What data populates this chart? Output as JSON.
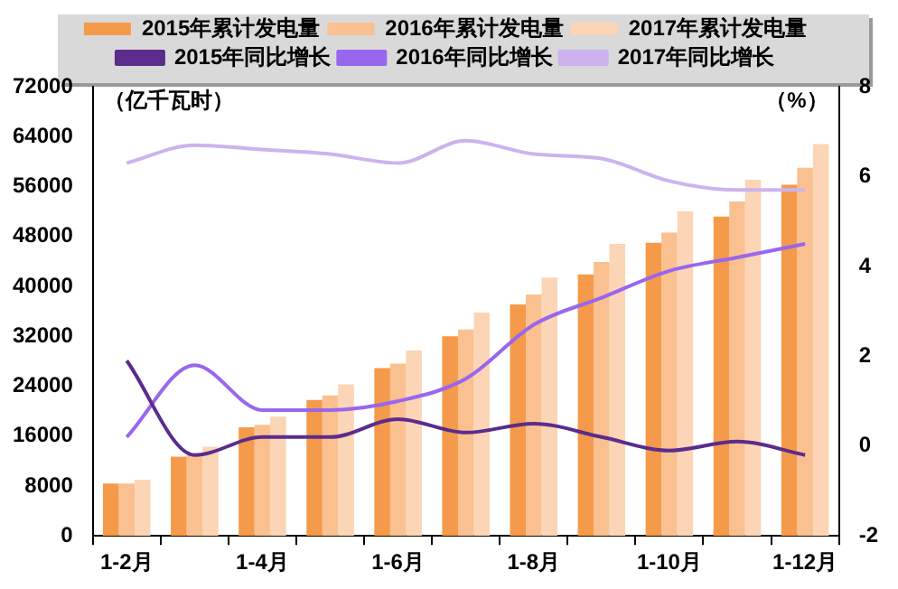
{
  "chart_data": {
    "type": "bar",
    "ylabel": "（亿千瓦时）",
    "y2label": "（%）",
    "categories": [
      "1-2月",
      null,
      "1-4月",
      null,
      "1-6月",
      null,
      "1-8月",
      null,
      "1-10月",
      null,
      "1-12月"
    ],
    "series": [
      {
        "name": "2015年累计发电量",
        "color": "#f59a4a",
        "values": [
          8400,
          12700,
          17400,
          21800,
          26900,
          32000,
          37100,
          41900,
          47000,
          51200,
          56300
        ]
      },
      {
        "name": "2016年累计发电量",
        "color": "#fac090",
        "values": [
          8400,
          12900,
          17800,
          22500,
          27600,
          33100,
          38700,
          43900,
          48600,
          53600,
          59000
        ]
      },
      {
        "name": "2017年累计发电量",
        "color": "#fbd5b5",
        "values": [
          9000,
          14300,
          19100,
          24300,
          29700,
          35800,
          41400,
          46800,
          52000,
          57100,
          62800
        ]
      },
      {
        "name": "2015年同比增长",
        "type": "line",
        "axis": "y2",
        "color": "#5b2c8c",
        "values": [
          1.9,
          -0.2,
          0.2,
          0.2,
          0.6,
          0.3,
          0.5,
          0.2,
          -0.1,
          0.1,
          -0.2
        ]
      },
      {
        "name": "2016年同比增长",
        "type": "line",
        "axis": "y2",
        "color": "#9966ee",
        "values": [
          0.2,
          1.8,
          0.8,
          0.8,
          1.0,
          1.5,
          2.7,
          3.3,
          3.9,
          4.2,
          4.5
        ]
      },
      {
        "name": "2017年同比增长",
        "type": "line",
        "axis": "y2",
        "color": "#ccb3ee",
        "values": [
          6.3,
          6.7,
          6.6,
          6.5,
          6.3,
          6.8,
          6.5,
          6.4,
          5.9,
          5.7,
          5.7
        ]
      }
    ],
    "ylim": [
      0,
      72000
    ],
    "yticks": [
      0,
      8000,
      16000,
      24000,
      32000,
      40000,
      48000,
      56000,
      64000,
      72000
    ],
    "y2lim": [
      -2,
      8
    ],
    "y2ticks": [
      -2,
      0,
      2,
      4,
      6,
      8
    ],
    "grid": false,
    "legend": "top",
    "marker": "none"
  }
}
